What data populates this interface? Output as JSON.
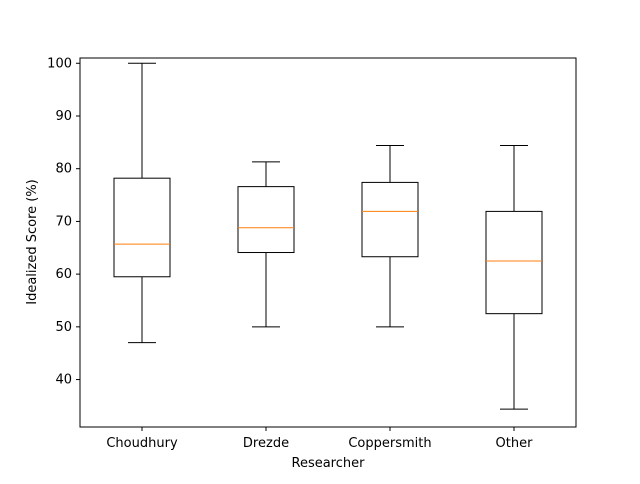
{
  "chart_data": {
    "type": "box",
    "title": "",
    "xlabel": "Researcher",
    "ylabel": "Idealized Score (%)",
    "ylim": [
      31,
      101
    ],
    "yticks": [
      40,
      50,
      60,
      70,
      80,
      90,
      100
    ],
    "grid": false,
    "categories": [
      "Choudhury",
      "Drezde",
      "Coppersmith",
      "Other"
    ],
    "boxes": [
      {
        "category": "Choudhury",
        "whisker_low": 47,
        "q1": 59.5,
        "median": 65.7,
        "q3": 78.2,
        "whisker_high": 100
      },
      {
        "category": "Drezde",
        "whisker_low": 50,
        "q1": 64.1,
        "median": 68.8,
        "q3": 76.6,
        "whisker_high": 81.3
      },
      {
        "category": "Coppersmith",
        "whisker_low": 50,
        "q1": 63.3,
        "median": 71.9,
        "q3": 77.4,
        "whisker_high": 84.4
      },
      {
        "category": "Other",
        "whisker_low": 34.4,
        "q1": 52.5,
        "median": 62.5,
        "q3": 71.9,
        "whisker_high": 84.4
      }
    ],
    "colors": {
      "box": "#000000",
      "median": "#ff7f0e",
      "axes": "#000000"
    }
  }
}
